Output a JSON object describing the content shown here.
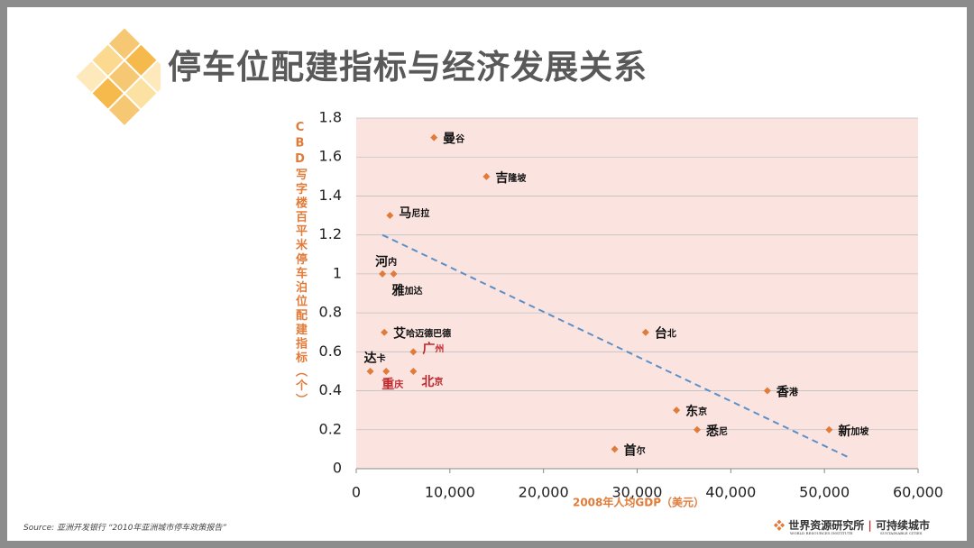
{
  "title": "停车位配建指标与经济发展关系",
  "source": "Source: 亚洲开发银行 “2010年亚洲城市停车政策报告”",
  "logo": {
    "left": "世界资源研究所",
    "right": "可持续城市",
    "left_sub": "WORLD RESOURCES INSTITUTE",
    "right_sub": "SUSTAINABLE CITIES"
  },
  "chart_data": {
    "type": "scatter",
    "x_label": "2008年人均GDP（美元）",
    "y_label": "CBD写字楼百平米停车泊位配建指标（个）",
    "color": "#e07b39",
    "grid": true,
    "xlim": [
      0,
      60000
    ],
    "xticks": [
      0,
      {
        "value": 10000,
        "label": "10,000"
      },
      {
        "value": 20000,
        "label": "20,000"
      },
      {
        "value": 30000,
        "label": "30,000"
      },
      {
        "value": 40000,
        "label": "40,000"
      },
      {
        "value": 50000,
        "label": "50,000"
      },
      {
        "value": 60000,
        "label": "60,000"
      }
    ],
    "ylim": [
      0,
      1.8
    ],
    "yticks": [
      0,
      0.2,
      0.4,
      0.6,
      0.8,
      1,
      1.2,
      1.4,
      1.6,
      1.8
    ],
    "labels": [
      "曼谷",
      "吉隆坡",
      "马尼拉",
      "河内",
      "雅加达",
      "艾哈迈德巴德",
      "广州",
      "达卡",
      "重庆",
      "北京",
      "台北",
      "东京",
      "悉尼",
      "首尔",
      "香港",
      "新加坡"
    ],
    "label_colors": [
      "#111",
      "#111",
      "#111",
      "#111",
      "#111",
      "#111",
      "#c0282d",
      "#111",
      "#c0282d",
      "#c0282d",
      "#111",
      "#111",
      "#111",
      "#111",
      "#111",
      "#111"
    ],
    "x": [
      8300,
      13900,
      3600,
      2800,
      4000,
      3000,
      6100,
      1500,
      3200,
      6100,
      30900,
      34200,
      36400,
      27600,
      43900,
      50500
    ],
    "y": [
      1.7,
      1.5,
      1.3,
      1.0,
      1.0,
      0.7,
      0.6,
      0.5,
      0.5,
      0.5,
      0.7,
      0.3,
      0.2,
      0.1,
      0.4,
      0.2
    ],
    "trendline": {
      "color": "#5b8fc9",
      "x": [
        2800,
        52500
      ],
      "y": [
        1.2,
        0.06
      ]
    }
  }
}
